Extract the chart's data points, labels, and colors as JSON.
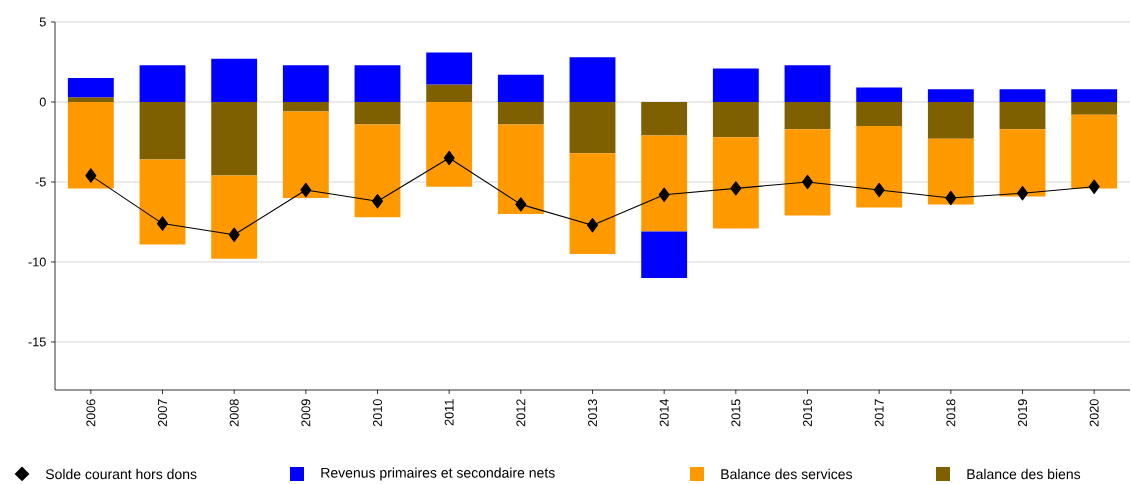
{
  "chart_data": {
    "type": "bar",
    "stacked": true,
    "categories": [
      "2006",
      "2007",
      "2008",
      "2009",
      "2010",
      "2011",
      "2012",
      "2013",
      "2014",
      "2015",
      "2016",
      "2017",
      "2018",
      "2019",
      "2020"
    ],
    "series": [
      {
        "name": "Balance des biens",
        "color": "#7f6000",
        "values": [
          0.3,
          -3.6,
          -4.6,
          -0.6,
          -1.4,
          1.1,
          -1.4,
          -3.2,
          -2.1,
          -2.2,
          -1.7,
          -1.5,
          -2.3,
          -1.7,
          -0.8
        ]
      },
      {
        "name": "Balance des services",
        "color": "#ff9900",
        "values": [
          -5.4,
          -5.3,
          -5.2,
          -5.4,
          -5.8,
          -5.3,
          -5.6,
          -6.3,
          -6.0,
          -5.7,
          -5.4,
          -5.1,
          -4.1,
          -4.2,
          -4.6
        ]
      },
      {
        "name": "Revenus primaires et secondaire nets",
        "color": "#0000ff",
        "values": [
          1.2,
          2.3,
          2.7,
          2.3,
          2.3,
          2.0,
          1.7,
          2.8,
          -2.9,
          2.1,
          2.3,
          0.9,
          0.8,
          0.8,
          0.8
        ]
      },
      {
        "name": "Solde courant hors dons",
        "type": "line",
        "color": "#000000",
        "marker": "diamond",
        "values": [
          -4.6,
          -7.6,
          -8.3,
          -5.5,
          -6.2,
          -3.5,
          -6.4,
          -7.7,
          -5.8,
          -5.4,
          -5.0,
          -5.5,
          -6.0,
          -5.7,
          -5.3
        ]
      }
    ],
    "ylim": [
      -18,
      5
    ],
    "yticks": [
      5,
      0,
      -5,
      -10,
      -15
    ],
    "grid": "y",
    "legend": "bottom"
  }
}
